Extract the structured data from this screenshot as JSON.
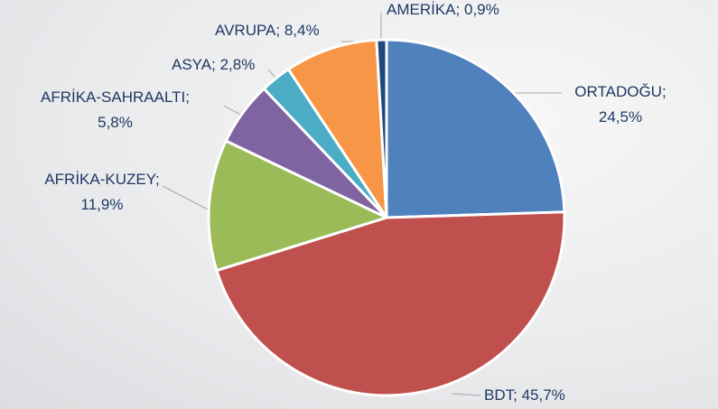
{
  "chart_data": {
    "type": "pie",
    "categories": [
      "ORTADOĞU;",
      "BDT;",
      "AFRİKA-KUZEY;",
      "AFRİKA-SAHRAALTI;",
      "ASYA;",
      "AVRUPA;",
      "AMERİKA;"
    ],
    "values": [
      24.5,
      45.7,
      11.9,
      5.8,
      2.8,
      8.4,
      0.9
    ],
    "value_labels": [
      "24,5%",
      "45,7%",
      "11,9%",
      "5,8%",
      "2,8%",
      "8,4%",
      "0,9%"
    ],
    "colors": [
      "#4f81bd",
      "#c0504d",
      "#9bbb59",
      "#8064a2",
      "#4bacc6",
      "#f79646",
      "#1f497d"
    ]
  }
}
